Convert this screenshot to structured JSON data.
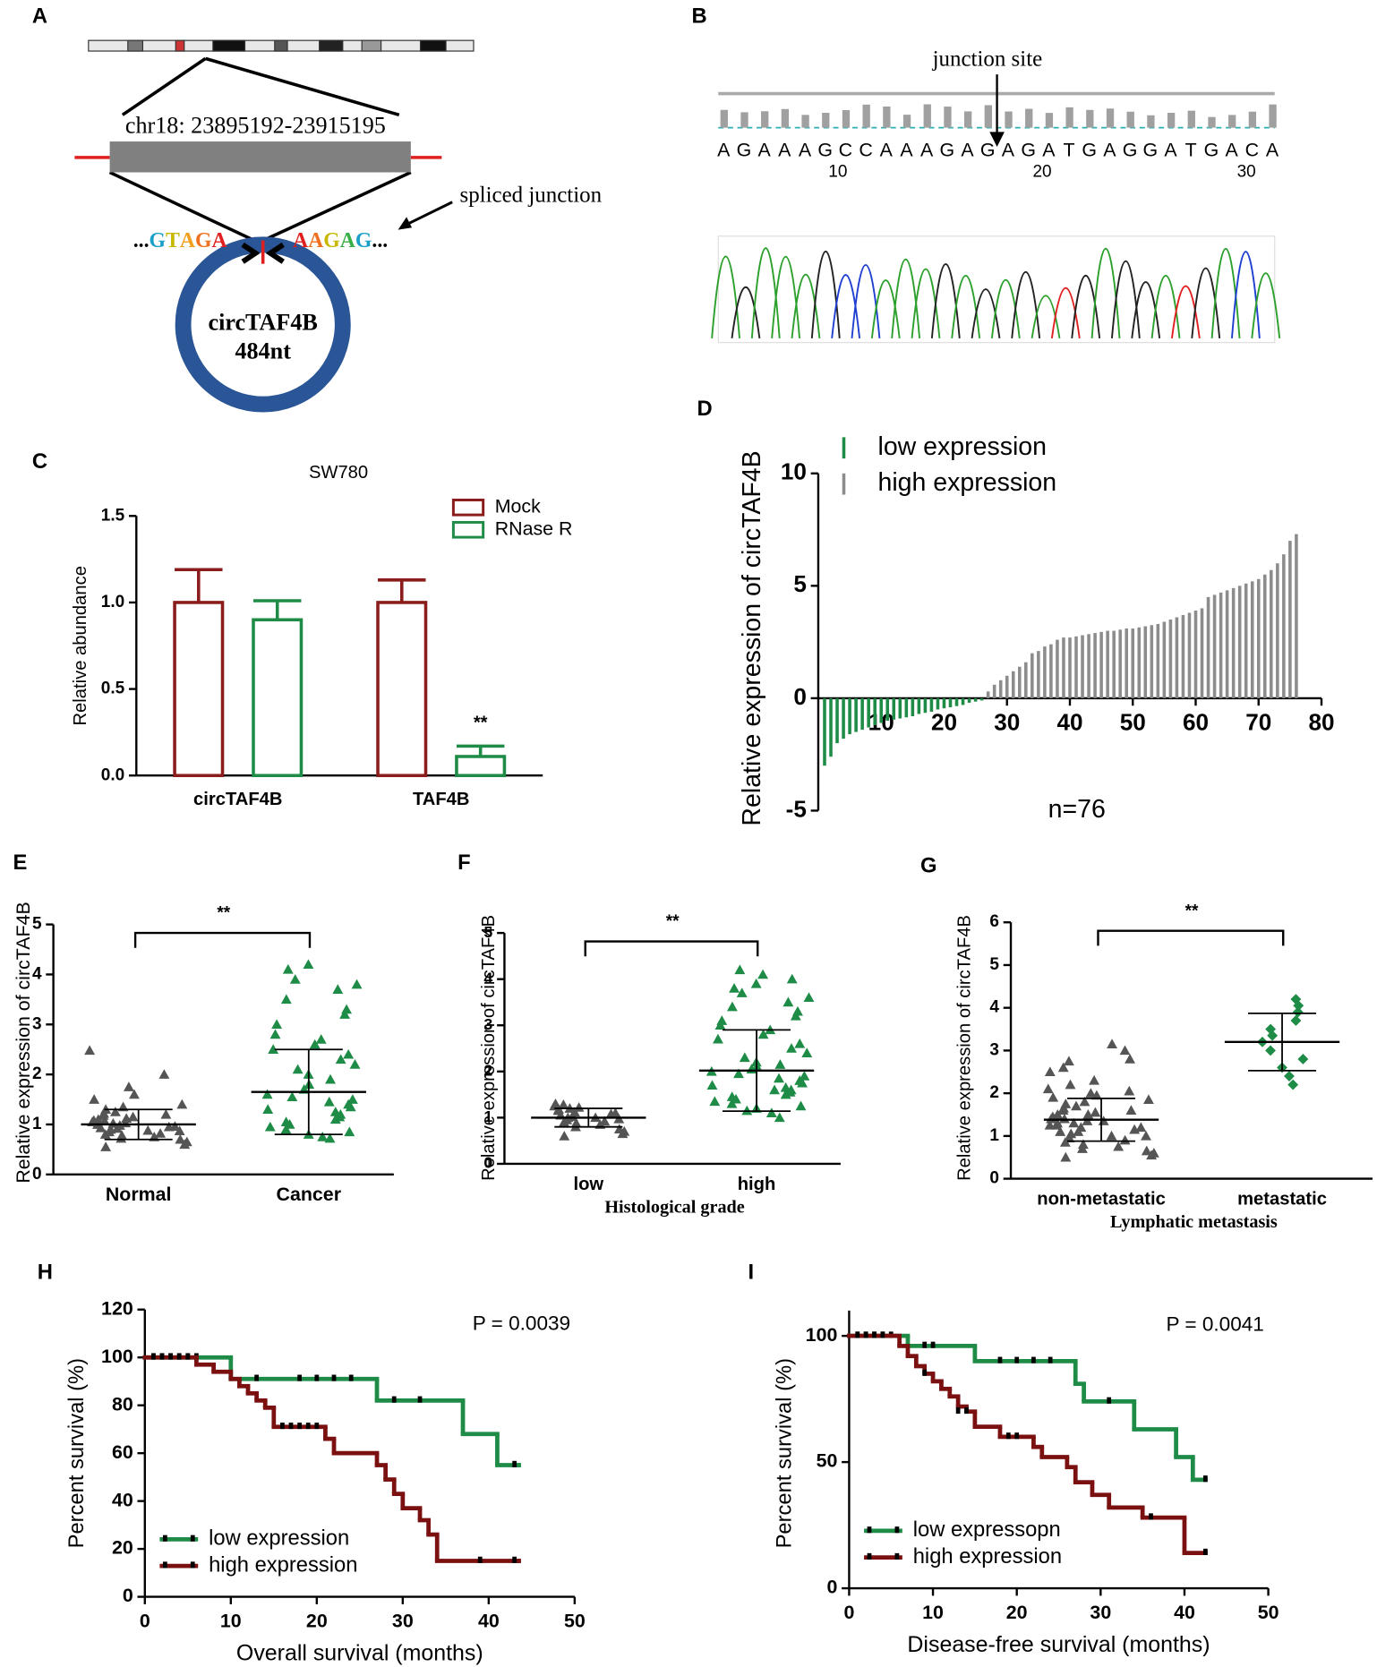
{
  "diagrams": [
    {
      "panel_label": "A",
      "region": "chr18: 23895192-23915195",
      "annotation": "spliced junction",
      "left_sequence": [
        "...",
        "G",
        "T",
        "A",
        "G",
        "A"
      ],
      "right_sequence": [
        "A",
        "A",
        "G",
        "A",
        "G",
        "..."
      ],
      "circle_name": "circTAF4B",
      "circle_length": "484nt"
    },
    {
      "panel_label": "B",
      "annotation": "junction site",
      "sequence": [
        "A",
        "G",
        "A",
        "A",
        "A",
        "G",
        "C",
        "C",
        "A",
        "A",
        "A",
        "G",
        "A",
        "G",
        "A",
        "G",
        "A",
        "T",
        "G",
        "A",
        "G",
        "G",
        "A",
        "T",
        "G",
        "A",
        "C",
        "A"
      ],
      "position_labels": [
        10,
        20,
        30
      ]
    }
  ],
  "chart_data": [
    {
      "panel_label": "C",
      "type": "bar",
      "title": "SW780",
      "y_label": "Relative abundance",
      "categories": [
        "circTAF4B",
        "TAF4B"
      ],
      "series": [
        {
          "name": "Mock",
          "color": "#8b1c1c",
          "values": [
            1.0,
            1.0
          ],
          "errors": [
            0.19,
            0.13
          ]
        },
        {
          "name": "RNase R",
          "color": "#1e8c46",
          "values": [
            0.9,
            0.11
          ],
          "errors": [
            0.11,
            0.06
          ]
        }
      ],
      "ylim": [
        0,
        1.5
      ],
      "yticks": [
        {
          "value": 0,
          "label": "0.0"
        },
        0.5,
        {
          "value": 1,
          "label": "1.0"
        },
        1.5
      ],
      "annotation": "**",
      "legend": "upper right"
    },
    {
      "panel_label": "D",
      "type": "waterfall",
      "y_label": "Relative expression of circTAF4B",
      "annotation": "n=76",
      "series": [
        {
          "name": "low expression",
          "color": "#1e8c46",
          "x": [
            1,
            2,
            3,
            4,
            5,
            6,
            7,
            8,
            9,
            10,
            11,
            12,
            13,
            14,
            15,
            16,
            17,
            18,
            19,
            20,
            21,
            22,
            23,
            24,
            25,
            26
          ],
          "values": [
            -3,
            -2.6,
            -2,
            -1.8,
            -1.6,
            -1.5,
            -1.4,
            -1.3,
            -1.2,
            -1.1,
            -1,
            -0.95,
            -0.9,
            -0.85,
            -0.8,
            -0.7,
            -0.65,
            -0.6,
            -0.5,
            -0.45,
            -0.4,
            -0.35,
            -0.3,
            -0.2,
            -0.15,
            -0.1
          ]
        },
        {
          "name": "high expression",
          "color": "#8c8c8c",
          "x": [
            27,
            28,
            29,
            30,
            31,
            32,
            33,
            34,
            35,
            36,
            37,
            38,
            39,
            40,
            41,
            42,
            43,
            44,
            45,
            46,
            47,
            48,
            49,
            50,
            51,
            52,
            53,
            54,
            55,
            56,
            57,
            58,
            59,
            60,
            61,
            62,
            63,
            64,
            65,
            66,
            67,
            68,
            69,
            70,
            71,
            72,
            73,
            74,
            75,
            76
          ],
          "values": [
            0.3,
            0.6,
            0.8,
            1.0,
            1.2,
            1.4,
            1.6,
            2.0,
            2.1,
            2.3,
            2.4,
            2.6,
            2.7,
            2.7,
            2.75,
            2.8,
            2.85,
            2.9,
            2.95,
            3.0,
            3.0,
            3.05,
            3.1,
            3.1,
            3.15,
            3.2,
            3.25,
            3.3,
            3.4,
            3.5,
            3.6,
            3.7,
            3.8,
            3.9,
            4.0,
            4.5,
            4.6,
            4.7,
            4.8,
            4.9,
            5.0,
            5.1,
            5.2,
            5.3,
            5.5,
            5.7,
            6.0,
            6.4,
            7.0,
            7.3
          ]
        }
      ],
      "xlim": [
        0,
        80
      ],
      "xticks": [
        10,
        20,
        30,
        40,
        50,
        60,
        70,
        80
      ],
      "ylim": [
        -5,
        10
      ],
      "yticks": [
        -5,
        0,
        5,
        10
      ],
      "legend": "upper left"
    },
    {
      "panel_label": "E",
      "type": "dotplot",
      "y_label": "Relative expression of circTAF4B",
      "annotation": "**",
      "groups": [
        {
          "name": "Normal",
          "color": "#555555",
          "marker": "triangle",
          "mean": 1.0,
          "sd": 0.3,
          "values": [
            0.55,
            0.6,
            0.65,
            0.7,
            0.72,
            0.75,
            0.78,
            0.8,
            0.82,
            0.85,
            0.87,
            0.88,
            0.9,
            0.92,
            0.93,
            0.95,
            0.96,
            0.98,
            1.0,
            1.0,
            1.02,
            1.03,
            1.05,
            1.07,
            1.08,
            1.1,
            1.12,
            1.15,
            1.18,
            1.2,
            1.22,
            1.25,
            1.3,
            1.35,
            1.4,
            1.5,
            1.6,
            1.75,
            2.0,
            2.48
          ]
        },
        {
          "name": "Cancer",
          "color": "#1e8c46",
          "marker": "triangle",
          "mean": 1.65,
          "sd": 0.85,
          "values": [
            0.72,
            0.75,
            0.8,
            0.85,
            0.9,
            0.95,
            1.0,
            1.05,
            1.1,
            1.15,
            1.2,
            1.25,
            1.3,
            1.35,
            1.4,
            1.45,
            1.5,
            1.55,
            1.6,
            1.7,
            1.8,
            1.9,
            2.0,
            2.1,
            2.2,
            2.3,
            2.4,
            2.5,
            2.6,
            2.7,
            2.8,
            3.0,
            3.2,
            3.3,
            3.5,
            3.7,
            3.8,
            3.9,
            4.1,
            4.2
          ]
        }
      ],
      "ylim": [
        0,
        5
      ],
      "yticks": [
        0,
        1,
        2,
        3,
        4,
        5
      ]
    },
    {
      "panel_label": "F",
      "type": "dotplot",
      "y_label": "Relative expression of circTAF4B",
      "x_label": "Histological grade",
      "annotation": "**",
      "groups": [
        {
          "name": "low",
          "color": "#555555",
          "marker": "triangle",
          "mean": 1.0,
          "sd": 0.2,
          "values": [
            0.6,
            0.65,
            0.7,
            0.75,
            0.8,
            0.85,
            0.88,
            0.9,
            0.92,
            0.95,
            0.97,
            1.0,
            1.0,
            1.02,
            1.05,
            1.08,
            1.1,
            1.12,
            1.15,
            1.18,
            1.2,
            1.22,
            1.25,
            1.28,
            1.3
          ]
        },
        {
          "name": "high",
          "color": "#1e8c46",
          "marker": "triangle",
          "mean": 2.02,
          "sd": 0.88,
          "values": [
            1.0,
            1.1,
            1.2,
            1.25,
            1.3,
            1.35,
            1.4,
            1.45,
            1.5,
            1.55,
            1.6,
            1.65,
            1.7,
            1.75,
            1.8,
            1.85,
            1.9,
            1.95,
            2.0,
            2.05,
            2.1,
            2.15,
            2.2,
            2.3,
            2.4,
            2.5,
            2.6,
            2.7,
            2.8,
            2.9,
            3.0,
            3.1,
            3.2,
            3.3,
            3.4,
            3.5,
            3.6,
            3.7,
            3.8,
            3.9,
            4.0,
            4.1,
            4.2,
            1.15,
            1.6
          ]
        }
      ],
      "ylim": [
        0,
        5
      ],
      "yticks": [
        0,
        1,
        2,
        3,
        4,
        5
      ]
    },
    {
      "panel_label": "G",
      "type": "dotplot",
      "y_label": "Relative expression of circTAF4B",
      "x_label": "Lymphatic metastasis",
      "annotation": "**",
      "groups": [
        {
          "name": "non-metastatic",
          "color": "#555555",
          "marker": "triangle",
          "mean": 1.38,
          "sd": 0.5,
          "values": [
            0.5,
            0.55,
            0.6,
            0.65,
            0.7,
            0.75,
            0.8,
            0.85,
            0.9,
            0.95,
            1.0,
            1.0,
            1.05,
            1.1,
            1.1,
            1.15,
            1.2,
            1.2,
            1.25,
            1.3,
            1.3,
            1.35,
            1.4,
            1.4,
            1.45,
            1.5,
            1.5,
            1.55,
            1.6,
            1.6,
            1.65,
            1.7,
            1.75,
            1.8,
            1.85,
            1.9,
            1.95,
            2.0,
            2.05,
            2.1,
            2.2,
            2.3,
            2.5,
            2.6,
            2.75,
            2.8,
            3.0,
            3.15,
            1.25,
            1.35
          ]
        },
        {
          "name": "metastatic",
          "color": "#1e8c46",
          "marker": "diamond",
          "mean": 3.2,
          "sd": 0.67,
          "values": [
            2.2,
            2.4,
            2.6,
            2.8,
            3.0,
            3.2,
            3.35,
            3.5,
            3.7,
            3.9,
            4.05,
            4.2
          ]
        }
      ],
      "ylim": [
        0,
        6
      ],
      "yticks": [
        0,
        1,
        2,
        3,
        4,
        5,
        6
      ]
    },
    {
      "panel_label": "H",
      "type": "survival",
      "x_label": "Overall  survival  (months)",
      "y_label": "Percent survival (%)",
      "annotation": "P = 0.0039",
      "series": [
        {
          "name": "low expression",
          "color": "#1e8c46",
          "x": [
            0,
            10,
            27,
            37,
            41,
            43.5
          ],
          "values": [
            100,
            91,
            82,
            68,
            55,
            55
          ],
          "censor_x": [
            1,
            2,
            3,
            4,
            5,
            6,
            13,
            18,
            20,
            22,
            24,
            29,
            32,
            43
          ],
          "censor_y": [
            100,
            100,
            100,
            100,
            100,
            100,
            91,
            91,
            91,
            91,
            91,
            82,
            82,
            55
          ]
        },
        {
          "name": "high expression",
          "color": "#7a1010",
          "x": [
            0,
            6,
            8,
            10,
            11,
            12,
            13,
            14,
            15,
            21,
            22,
            27,
            28,
            29,
            30,
            32,
            33,
            34,
            43.5
          ],
          "values": [
            100,
            97,
            94,
            91,
            88,
            85,
            82,
            79,
            71,
            66,
            60,
            55,
            49,
            43,
            37,
            32,
            26,
            15,
            15
          ],
          "censor_x": [
            1,
            2,
            3,
            4,
            5,
            16,
            17,
            18,
            19,
            20,
            39,
            43
          ],
          "censor_y": [
            100,
            100,
            100,
            100,
            100,
            71,
            71,
            71,
            71,
            71,
            15,
            15
          ]
        }
      ],
      "xlim": [
        0,
        50
      ],
      "xticks": [
        0,
        10,
        20,
        30,
        40,
        50
      ],
      "ylim": [
        0,
        120
      ],
      "yticks": [
        0,
        20,
        40,
        60,
        80,
        100,
        120
      ],
      "legend": "lower left"
    },
    {
      "panel_label": "I",
      "type": "survival",
      "x_label": "Disease-free survival  (months)",
      "y_label": "Percent survival (%)",
      "annotation": "P = 0.0041",
      "series": [
        {
          "name": "low expressopn",
          "color": "#1e8c46",
          "x": [
            0,
            7,
            15,
            27,
            28,
            34,
            39,
            41,
            42.5
          ],
          "values": [
            100,
            96,
            90,
            81,
            74,
            63,
            52,
            43,
            43
          ],
          "censor_x": [
            1,
            2,
            3,
            4,
            5,
            9,
            10,
            18,
            20,
            22,
            24,
            31,
            42.5
          ],
          "censor_y": [
            100,
            100,
            100,
            100,
            100,
            96,
            96,
            90,
            90,
            90,
            90,
            74,
            43
          ]
        },
        {
          "name": "high expression",
          "color": "#7a1010",
          "x": [
            0,
            6,
            7,
            8,
            9,
            10,
            11,
            12,
            13,
            14,
            15,
            18,
            22,
            23,
            26,
            27,
            29,
            31,
            35,
            40,
            42.5
          ],
          "values": [
            100,
            96,
            92,
            88,
            85,
            82,
            79,
            76,
            72,
            70,
            64,
            60,
            56,
            52,
            48,
            42,
            37,
            32,
            28,
            14,
            14
          ],
          "censor_x": [
            1,
            2,
            3,
            4,
            9,
            13,
            14,
            19,
            20,
            36,
            42.5
          ],
          "censor_y": [
            100,
            100,
            100,
            100,
            85,
            70,
            70,
            60,
            60,
            28,
            14
          ]
        }
      ],
      "xlim": [
        0,
        50
      ],
      "xticks": [
        0,
        10,
        20,
        30,
        40,
        50
      ],
      "ylim": [
        0,
        110
      ],
      "yticks": [
        0,
        50,
        100
      ],
      "legend": "lower left"
    }
  ]
}
